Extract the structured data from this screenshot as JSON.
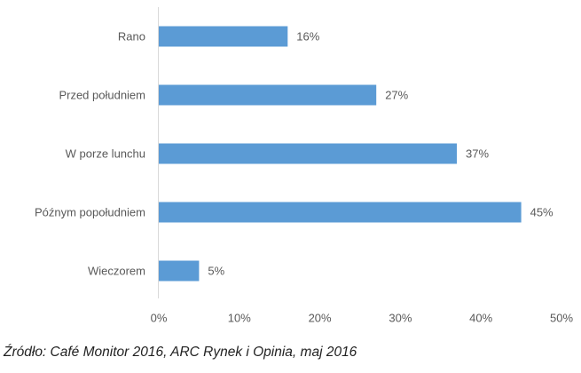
{
  "chart_data": {
    "type": "bar",
    "orientation": "horizontal",
    "categories": [
      "Rano",
      "Przed południem",
      "W porze lunchu",
      "Późnym popołudniem",
      "Wieczorem"
    ],
    "values": [
      16,
      27,
      37,
      45,
      5
    ],
    "value_labels": [
      "16%",
      "27%",
      "37%",
      "45%",
      "5%"
    ],
    "xlim": [
      0,
      50
    ],
    "x_ticks": [
      "0%",
      "10%",
      "20%",
      "30%",
      "40%",
      "50%"
    ],
    "grid": false,
    "legend": "none",
    "bar_color": "#5B9BD5"
  },
  "source_note": "Źródło: Café Monitor 2016, ARC Rynek i Opinia, maj 2016"
}
